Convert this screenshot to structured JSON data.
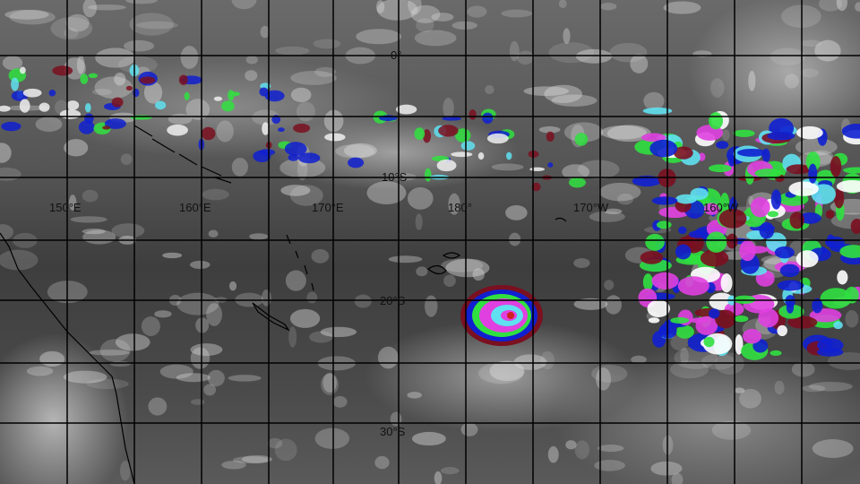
{
  "longitude_labels": [
    "150°E",
    "160°E",
    "170°E",
    "180°",
    "170°W",
    "160°W"
  ],
  "latitude_labels": [
    "0°",
    "10°S",
    "20°S",
    "30°S"
  ],
  "enhancement_colors": {
    "maroon": "#7a1020",
    "blue": "#1020d0",
    "green": "#30e040",
    "cyan": "#60e0f0",
    "magenta": "#e040e0",
    "red": "#d02020"
  },
  "features": {
    "cyclone": "tropical cyclone centre east of New Caledonia, south of Fiji"
  }
}
